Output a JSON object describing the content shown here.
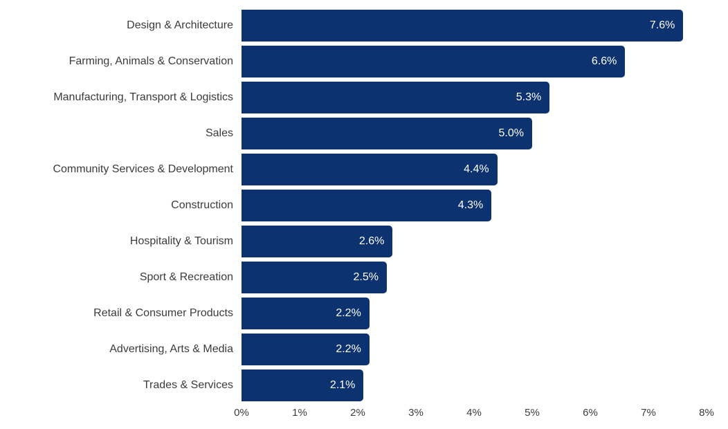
{
  "chart_data": {
    "type": "bar",
    "orientation": "horizontal",
    "title": "",
    "xlabel": "",
    "ylabel": "",
    "grid": false,
    "legend": false,
    "xlim": [
      0,
      8
    ],
    "categories": [
      "Design & Architecture",
      "Farming, Animals & Conservation",
      "Manufacturing, Transport & Logistics",
      "Sales",
      "Community Services & Development",
      "Construction",
      "Hospitality & Tourism",
      "Sport & Recreation",
      "Retail & Consumer Products",
      "Advertising, Arts & Media",
      "Trades & Services"
    ],
    "values": [
      7.6,
      6.6,
      5.3,
      5.0,
      4.4,
      4.3,
      2.6,
      2.5,
      2.2,
      2.2,
      2.1
    ],
    "value_labels": [
      "7.6%",
      "6.6%",
      "5.3%",
      "5.0%",
      "4.4%",
      "4.3%",
      "2.6%",
      "2.5%",
      "2.2%",
      "2.2%",
      "2.1%"
    ],
    "x_ticks": [
      {
        "value": 0,
        "label": "0%"
      },
      {
        "value": 1,
        "label": "1%"
      },
      {
        "value": 2,
        "label": "2%"
      },
      {
        "value": 3,
        "label": "3%"
      },
      {
        "value": 4,
        "label": "4%"
      },
      {
        "value": 5,
        "label": "5%"
      },
      {
        "value": 6,
        "label": "6%"
      },
      {
        "value": 7,
        "label": "7%"
      },
      {
        "value": 8,
        "label": "8%"
      }
    ],
    "colors": {
      "bar": "#0c326f",
      "value_label": "#ffffff",
      "category_label": "#3b3b3b",
      "axis_label": "#3b3b3b",
      "background": "#ffffff"
    }
  }
}
